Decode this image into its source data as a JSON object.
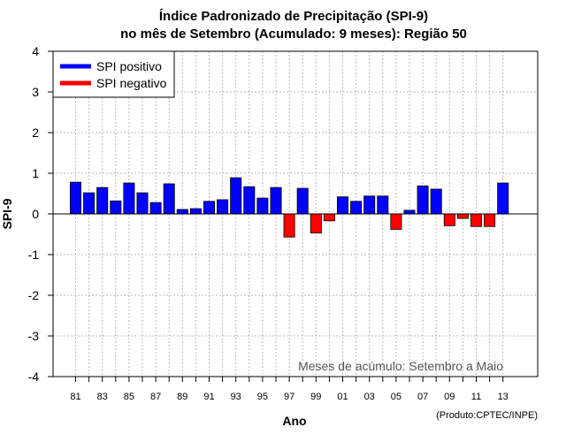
{
  "chart_data": {
    "type": "bar",
    "title_line1": "Índice Padronizado de Precipitação (SPI-9)",
    "title_line2": "no mês de Setembro (Acumulado: 9 meses): Região 50",
    "xlabel": "Ano",
    "ylabel": "SPI-9",
    "ylim": [
      -4,
      4
    ],
    "yticks": [
      4,
      3,
      2,
      1,
      0,
      -1,
      -2,
      -3,
      -4
    ],
    "grid": true,
    "legend_position": "top-left",
    "legend": [
      {
        "label": "SPI positivo",
        "color": "#0000ff"
      },
      {
        "label": "SPI negativo",
        "color": "#ff0000"
      }
    ],
    "positive_color": "#0000ff",
    "negative_color": "#ff0000",
    "categories": [
      "81",
      "82",
      "83",
      "84",
      "85",
      "86",
      "87",
      "88",
      "89",
      "90",
      "91",
      "92",
      "93",
      "94",
      "95",
      "96",
      "97",
      "98",
      "99",
      "00",
      "01",
      "02",
      "03",
      "04",
      "05",
      "06",
      "07",
      "08",
      "09",
      "10",
      "11",
      "12",
      "13"
    ],
    "xtick_labels": [
      "81",
      "83",
      "85",
      "87",
      "89",
      "91",
      "93",
      "95",
      "97",
      "99",
      "01",
      "03",
      "05",
      "07",
      "09",
      "11",
      "13"
    ],
    "values": [
      0.78,
      0.52,
      0.65,
      0.32,
      0.76,
      0.52,
      0.28,
      0.74,
      0.11,
      0.13,
      0.31,
      0.35,
      0.89,
      0.67,
      0.39,
      0.65,
      -0.57,
      0.63,
      -0.47,
      -0.17,
      0.42,
      0.31,
      0.44,
      0.44,
      -0.38,
      0.09,
      0.69,
      0.61,
      -0.29,
      -0.11,
      -0.31,
      -0.31,
      0.76
    ],
    "annotation": "Meses de acúmulo: Setembro a Maio",
    "credit": "(Produto:CPTEC/INPE)"
  }
}
